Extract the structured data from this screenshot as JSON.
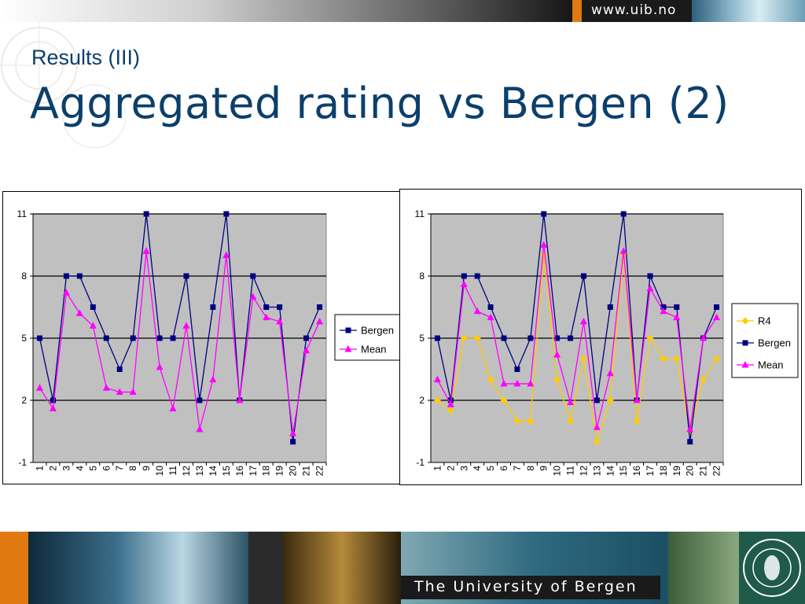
{
  "header": {
    "url": "www.uib.no"
  },
  "slide": {
    "subtitle": "Results (III)",
    "title": "Aggregated rating vs Bergen (2)"
  },
  "footer": {
    "text": "The University of Bergen"
  },
  "colors": {
    "bergen": "#000080",
    "mean": "#ff00ff",
    "r4": "#ffcc00",
    "plot_bg": "#c0c0c0"
  },
  "chart_data": [
    {
      "type": "line",
      "x": [
        "1",
        "2",
        "3",
        "4",
        "5",
        "6",
        "7",
        "8",
        "9",
        "10",
        "11",
        "12",
        "13",
        "14",
        "15",
        "16",
        "17",
        "18",
        "19",
        "20",
        "21",
        "22"
      ],
      "ylim": [
        -1,
        11
      ],
      "yticks": [
        -1,
        2,
        5,
        8,
        11
      ],
      "grid": true,
      "legend_position": "right",
      "series": [
        {
          "name": "Bergen",
          "marker": "square",
          "values": [
            5,
            2,
            8,
            8,
            6.5,
            5,
            3.5,
            5,
            11,
            5,
            5,
            8,
            2,
            6.5,
            11,
            2,
            8,
            6.5,
            6.5,
            0,
            5,
            6.5
          ]
        },
        {
          "name": "Mean",
          "marker": "triangle",
          "values": [
            2.6,
            1.6,
            7.2,
            6.2,
            5.6,
            2.6,
            2.4,
            2.4,
            9.2,
            3.6,
            1.6,
            5.6,
            0.6,
            3,
            9,
            2,
            7,
            6,
            5.8,
            0.4,
            4.4,
            5.8
          ]
        }
      ]
    },
    {
      "type": "line",
      "x": [
        "1",
        "2",
        "3",
        "4",
        "5",
        "6",
        "7",
        "8",
        "9",
        "10",
        "11",
        "12",
        "13",
        "14",
        "15",
        "16",
        "17",
        "18",
        "19",
        "20",
        "21",
        "22"
      ],
      "ylim": [
        -1,
        11
      ],
      "yticks": [
        -1,
        2,
        5,
        8,
        11
      ],
      "grid": true,
      "legend_position": "right",
      "series": [
        {
          "name": "R4",
          "marker": "diamond",
          "values": [
            2,
            1.5,
            5,
            5,
            3,
            2,
            1,
            1,
            9,
            3,
            1,
            4,
            0,
            2,
            9,
            1,
            5,
            4,
            4,
            0.5,
            3,
            4
          ]
        },
        {
          "name": "Bergen",
          "marker": "square",
          "values": [
            5,
            2,
            8,
            8,
            6.5,
            5,
            3.5,
            5,
            11,
            5,
            5,
            8,
            2,
            6.5,
            11,
            2,
            8,
            6.5,
            6.5,
            0,
            5,
            6.5
          ]
        },
        {
          "name": "Mean",
          "marker": "triangle",
          "values": [
            3,
            1.8,
            7.6,
            6.3,
            6,
            2.8,
            2.8,
            2.8,
            9.5,
            4.2,
            1.9,
            5.8,
            0.7,
            3.3,
            9.2,
            2,
            7.4,
            6.3,
            6,
            0.6,
            5,
            6
          ]
        }
      ]
    }
  ]
}
